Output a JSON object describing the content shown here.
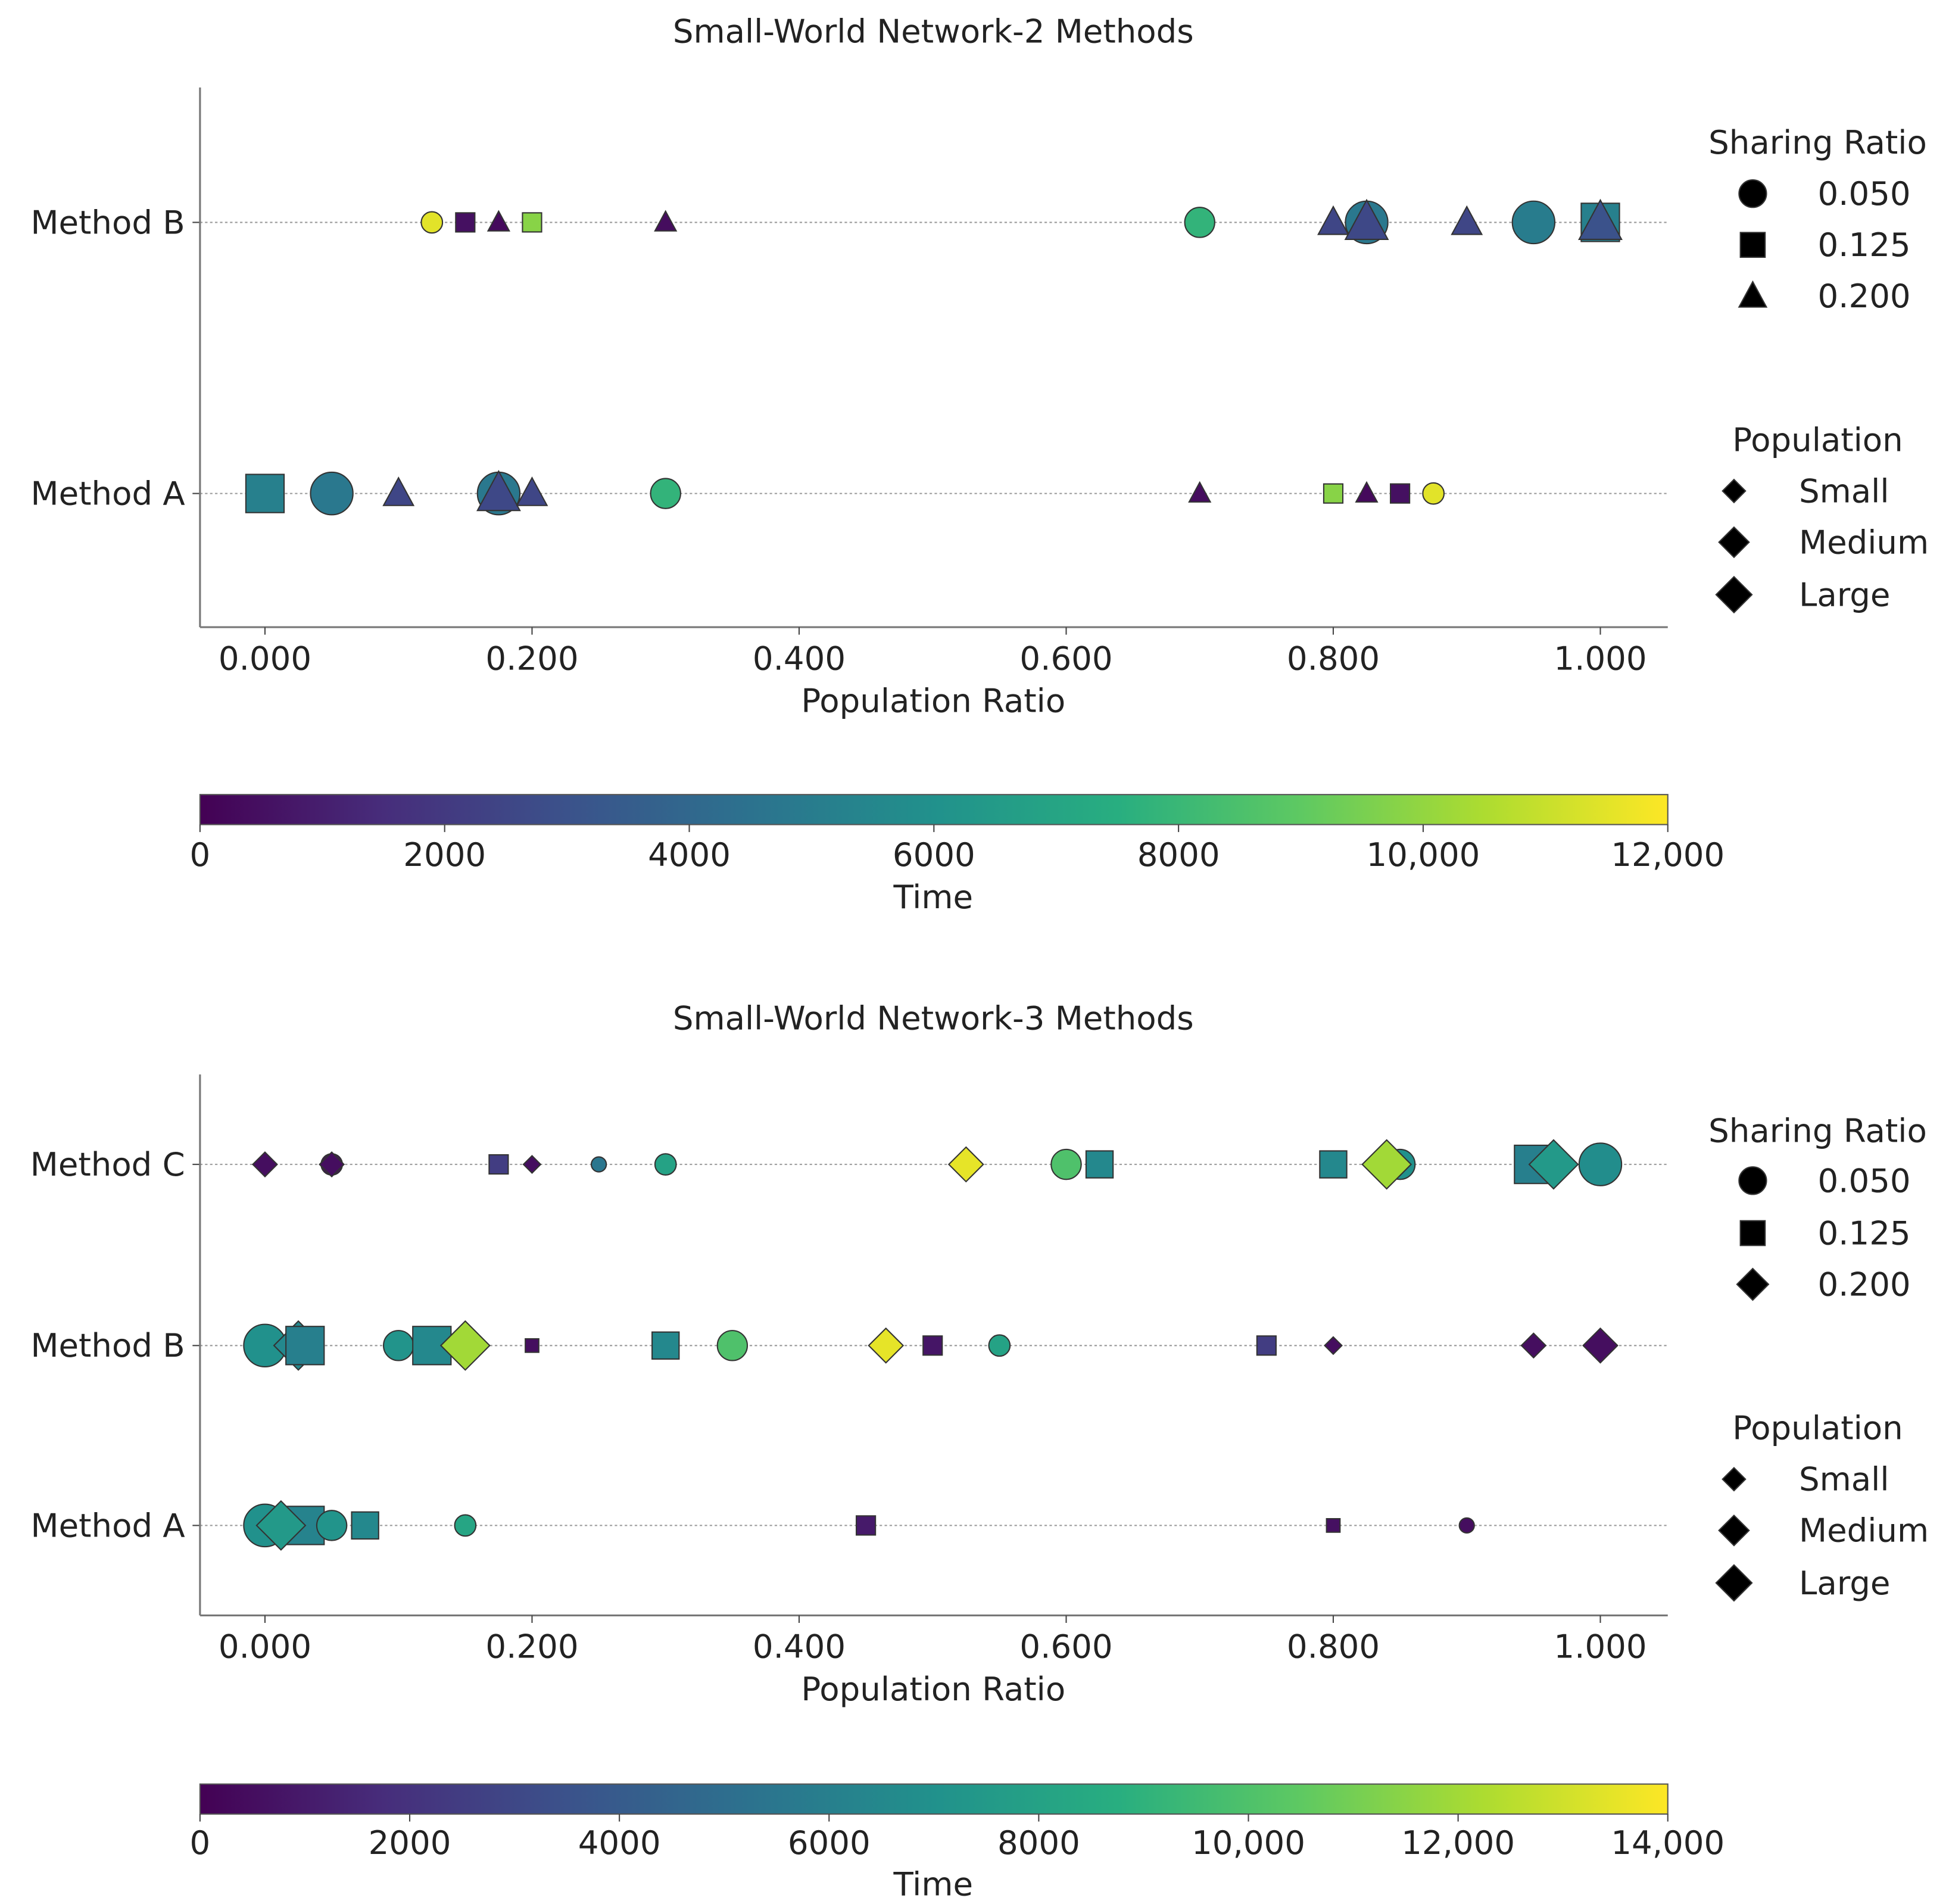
{
  "chart_data": [
    {
      "type": "scatter",
      "title": "Small-World Network-2 Methods",
      "xlabel": "Population Ratio",
      "xlim": [
        0,
        1
      ],
      "xticks": [
        "0.000",
        "0.200",
        "0.400",
        "0.600",
        "0.800",
        "1.000"
      ],
      "xtick_values": [
        0,
        0.2,
        0.4,
        0.6,
        0.8,
        1.0
      ],
      "categories": [
        "Method A",
        "Method B"
      ],
      "colorbar": {
        "label": "Time",
        "range": [
          0,
          12000
        ],
        "ticks": [
          "0",
          "2000",
          "4000",
          "6000",
          "8000",
          "10,000",
          "12,000"
        ],
        "tick_values": [
          0,
          2000,
          4000,
          6000,
          8000,
          10000,
          12000
        ]
      },
      "legend_shape": {
        "title": "Sharing Ratio",
        "entries": [
          {
            "label": "0.050",
            "shape": "circle"
          },
          {
            "label": "0.125",
            "shape": "square"
          },
          {
            "label": "0.200",
            "shape": "triangle"
          }
        ]
      },
      "legend_size": {
        "title": "Population",
        "entries": [
          {
            "label": "Small",
            "size": "small"
          },
          {
            "label": "Medium",
            "size": "medium"
          },
          {
            "label": "Large",
            "size": "large"
          }
        ]
      },
      "points": [
        {
          "method": "Method B",
          "x": 0.125,
          "shape": "circle",
          "size": "small",
          "time": 11500
        },
        {
          "method": "Method B",
          "x": 0.15,
          "shape": "square",
          "size": "small",
          "time": 500
        },
        {
          "method": "Method B",
          "x": 0.175,
          "shape": "triangle",
          "size": "small",
          "time": 300
        },
        {
          "method": "Method B",
          "x": 0.2,
          "shape": "square",
          "size": "small",
          "time": 9800
        },
        {
          "method": "Method B",
          "x": 0.3,
          "shape": "triangle",
          "size": "small",
          "time": 400
        },
        {
          "method": "Method B",
          "x": 0.7,
          "shape": "circle",
          "size": "medium",
          "time": 7800
        },
        {
          "method": "Method B",
          "x": 0.8,
          "shape": "triangle",
          "size": "medium",
          "time": 2500
        },
        {
          "method": "Method B",
          "x": 0.825,
          "shape": "circle",
          "size": "large",
          "time": 4800
        },
        {
          "method": "Method B",
          "x": 0.825,
          "shape": "triangle",
          "size": "large",
          "time": 2600
        },
        {
          "method": "Method B",
          "x": 0.9,
          "shape": "triangle",
          "size": "medium",
          "time": 2500
        },
        {
          "method": "Method B",
          "x": 0.95,
          "shape": "circle",
          "size": "large",
          "time": 5000
        },
        {
          "method": "Method B",
          "x": 1.0,
          "shape": "square",
          "size": "large",
          "time": 5200
        },
        {
          "method": "Method B",
          "x": 1.0,
          "shape": "triangle",
          "size": "large",
          "time": 3000
        },
        {
          "method": "Method A",
          "x": 0.0,
          "shape": "square",
          "size": "large",
          "time": 5200
        },
        {
          "method": "Method A",
          "x": 0.05,
          "shape": "circle",
          "size": "large",
          "time": 4800
        },
        {
          "method": "Method A",
          "x": 0.1,
          "shape": "triangle",
          "size": "medium",
          "time": 2500
        },
        {
          "method": "Method A",
          "x": 0.175,
          "shape": "circle",
          "size": "large",
          "time": 4800
        },
        {
          "method": "Method A",
          "x": 0.175,
          "shape": "triangle",
          "size": "large",
          "time": 2600
        },
        {
          "method": "Method A",
          "x": 0.2,
          "shape": "triangle",
          "size": "medium",
          "time": 2500
        },
        {
          "method": "Method A",
          "x": 0.3,
          "shape": "circle",
          "size": "medium",
          "time": 7800
        },
        {
          "method": "Method A",
          "x": 0.7,
          "shape": "triangle",
          "size": "small",
          "time": 400
        },
        {
          "method": "Method A",
          "x": 0.8,
          "shape": "square",
          "size": "small",
          "time": 9800
        },
        {
          "method": "Method A",
          "x": 0.825,
          "shape": "triangle",
          "size": "small",
          "time": 300
        },
        {
          "method": "Method A",
          "x": 0.85,
          "shape": "square",
          "size": "small",
          "time": 500
        },
        {
          "method": "Method A",
          "x": 0.875,
          "shape": "circle",
          "size": "small",
          "time": 11500
        }
      ]
    },
    {
      "type": "scatter",
      "title": "Small-World Network-3 Methods",
      "xlabel": "Population Ratio",
      "xlim": [
        0,
        1
      ],
      "xticks": [
        "0.000",
        "0.200",
        "0.400",
        "0.600",
        "0.800",
        "1.000"
      ],
      "xtick_values": [
        0,
        0.2,
        0.4,
        0.6,
        0.8,
        1.0
      ],
      "categories": [
        "Method A",
        "Method B",
        "Method C"
      ],
      "colorbar": {
        "label": "Time",
        "range": [
          0,
          14000
        ],
        "ticks": [
          "0",
          "2000",
          "4000",
          "6000",
          "8000",
          "10,000",
          "12,000",
          "14,000"
        ],
        "tick_values": [
          0,
          2000,
          4000,
          6000,
          8000,
          10000,
          12000,
          14000
        ]
      },
      "legend_shape": {
        "title": "Sharing Ratio",
        "entries": [
          {
            "label": "0.050",
            "shape": "circle"
          },
          {
            "label": "0.125",
            "shape": "square"
          },
          {
            "label": "0.200",
            "shape": "diamond"
          }
        ]
      },
      "legend_size": {
        "title": "Population",
        "entries": [
          {
            "label": "Small",
            "size": "small"
          },
          {
            "label": "Medium",
            "size": "medium"
          },
          {
            "label": "Large",
            "size": "large"
          }
        ]
      },
      "points": [
        {
          "method": "Method C",
          "x": 0.0,
          "shape": "diamond",
          "size": "small",
          "time": 500
        },
        {
          "method": "Method C",
          "x": 0.05,
          "shape": "circle",
          "size": "small",
          "time": 500
        },
        {
          "method": "Method C",
          "x": 0.05,
          "shape": "diamond",
          "size": "small",
          "time": 500
        },
        {
          "method": "Method C",
          "x": 0.175,
          "shape": "square",
          "size": "small",
          "time": 2500
        },
        {
          "method": "Method C",
          "x": 0.2,
          "shape": "diamond",
          "size": "tiny",
          "time": 500
        },
        {
          "method": "Method C",
          "x": 0.25,
          "shape": "circle",
          "size": "tiny",
          "time": 5500
        },
        {
          "method": "Method C",
          "x": 0.3,
          "shape": "circle",
          "size": "small",
          "time": 8000
        },
        {
          "method": "Method C",
          "x": 0.525,
          "shape": "diamond",
          "size": "medium",
          "time": 13500
        },
        {
          "method": "Method C",
          "x": 0.6,
          "shape": "circle",
          "size": "medium",
          "time": 10000
        },
        {
          "method": "Method C",
          "x": 0.625,
          "shape": "square",
          "size": "medium",
          "time": 6500
        },
        {
          "method": "Method C",
          "x": 0.8,
          "shape": "square",
          "size": "medium",
          "time": 6500
        },
        {
          "method": "Method C",
          "x": 0.85,
          "shape": "circle",
          "size": "medium",
          "time": 7000
        },
        {
          "method": "Method C",
          "x": 0.84,
          "shape": "diamond",
          "size": "large",
          "time": 12000
        },
        {
          "method": "Method C",
          "x": 0.95,
          "shape": "square",
          "size": "large",
          "time": 6000
        },
        {
          "method": "Method C",
          "x": 0.965,
          "shape": "diamond",
          "size": "large",
          "time": 7500
        },
        {
          "method": "Method C",
          "x": 1.0,
          "shape": "circle",
          "size": "large",
          "time": 6800
        },
        {
          "method": "Method B",
          "x": 0.0,
          "shape": "circle",
          "size": "large",
          "time": 7000
        },
        {
          "method": "Method B",
          "x": 0.025,
          "shape": "diamond",
          "size": "large",
          "time": 6500
        },
        {
          "method": "Method B",
          "x": 0.03,
          "shape": "square",
          "size": "large",
          "time": 6000
        },
        {
          "method": "Method B",
          "x": 0.1,
          "shape": "circle",
          "size": "medium",
          "time": 7200
        },
        {
          "method": "Method B",
          "x": 0.125,
          "shape": "square",
          "size": "large",
          "time": 6500
        },
        {
          "method": "Method B",
          "x": 0.15,
          "shape": "diamond",
          "size": "large",
          "time": 12000
        },
        {
          "method": "Method B",
          "x": 0.2,
          "shape": "square",
          "size": "tiny",
          "time": 500
        },
        {
          "method": "Method B",
          "x": 0.3,
          "shape": "square",
          "size": "medium",
          "time": 6500
        },
        {
          "method": "Method B",
          "x": 0.35,
          "shape": "circle",
          "size": "medium",
          "time": 10000
        },
        {
          "method": "Method B",
          "x": 0.465,
          "shape": "diamond",
          "size": "medium",
          "time": 13500
        },
        {
          "method": "Method B",
          "x": 0.5,
          "shape": "square",
          "size": "small",
          "time": 800
        },
        {
          "method": "Method B",
          "x": 0.55,
          "shape": "circle",
          "size": "small",
          "time": 8000
        },
        {
          "method": "Method B",
          "x": 0.75,
          "shape": "square",
          "size": "small",
          "time": 2500
        },
        {
          "method": "Method B",
          "x": 0.8,
          "shape": "diamond",
          "size": "tiny",
          "time": 500
        },
        {
          "method": "Method B",
          "x": 0.95,
          "shape": "diamond",
          "size": "small",
          "time": 500
        },
        {
          "method": "Method B",
          "x": 1.0,
          "shape": "diamond",
          "size": "medium",
          "time": 500
        },
        {
          "method": "Method A",
          "x": 0.0,
          "shape": "circle",
          "size": "large",
          "time": 7000
        },
        {
          "method": "Method A",
          "x": 0.03,
          "shape": "square",
          "size": "large",
          "time": 6200
        },
        {
          "method": "Method A",
          "x": 0.012,
          "shape": "diamond",
          "size": "large",
          "time": 7500
        },
        {
          "method": "Method A",
          "x": 0.05,
          "shape": "circle",
          "size": "medium",
          "time": 7200
        },
        {
          "method": "Method A",
          "x": 0.075,
          "shape": "square",
          "size": "medium",
          "time": 6500
        },
        {
          "method": "Method A",
          "x": 0.15,
          "shape": "circle",
          "size": "small",
          "time": 8200
        },
        {
          "method": "Method A",
          "x": 0.45,
          "shape": "square",
          "size": "small",
          "time": 1000
        },
        {
          "method": "Method A",
          "x": 0.8,
          "shape": "square",
          "size": "tiny",
          "time": 600
        },
        {
          "method": "Method A",
          "x": 0.9,
          "shape": "circle",
          "size": "tiny",
          "time": 500
        }
      ]
    }
  ]
}
